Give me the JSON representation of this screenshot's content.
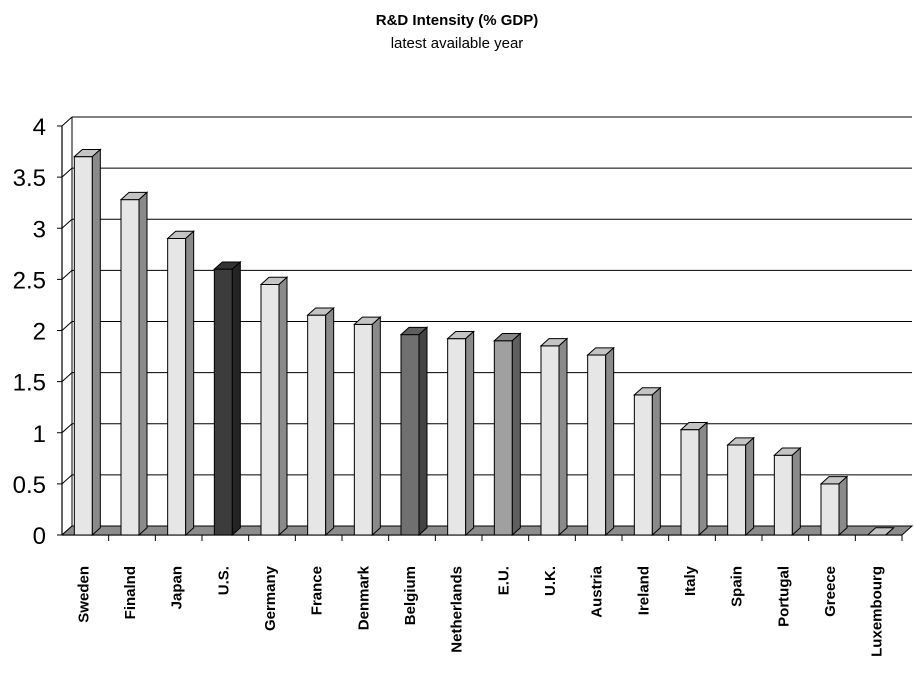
{
  "chart_data": {
    "type": "bar",
    "title": "R&D Intensity (%  GDP)",
    "subtitle": "latest available year",
    "categories": [
      "Sweden",
      "Finalnd",
      "Japan",
      "U.S.",
      "Germany",
      "France",
      "Denmark",
      "Belgium",
      "Netherlands",
      "E.U.",
      "U.K.",
      "Austria",
      "Ireland",
      "Italy",
      "Spain",
      "Portugal",
      "Greece",
      "Luxembourg"
    ],
    "values": [
      3.7,
      3.28,
      2.9,
      2.6,
      2.45,
      2.15,
      2.06,
      1.96,
      1.92,
      1.9,
      1.85,
      1.76,
      1.37,
      1.03,
      0.88,
      0.78,
      0.5,
      0
    ],
    "bar_colors": [
      "#e6e6e6",
      "#e6e6e6",
      "#e6e6e6",
      "#3c3c3c",
      "#e6e6e6",
      "#e6e6e6",
      "#e6e6e6",
      "#707070",
      "#e6e6e6",
      "#a0a0a0",
      "#e6e6e6",
      "#e6e6e6",
      "#e6e6e6",
      "#e6e6e6",
      "#e6e6e6",
      "#e6e6e6",
      "#e6e6e6",
      "#e6e6e6"
    ],
    "yticks": [
      "0",
      "0.5",
      "1",
      "1.5",
      "2",
      "2.5",
      "3",
      "3.5",
      "4"
    ],
    "ylim": [
      0,
      4
    ],
    "grid": true,
    "legend": "none"
  }
}
